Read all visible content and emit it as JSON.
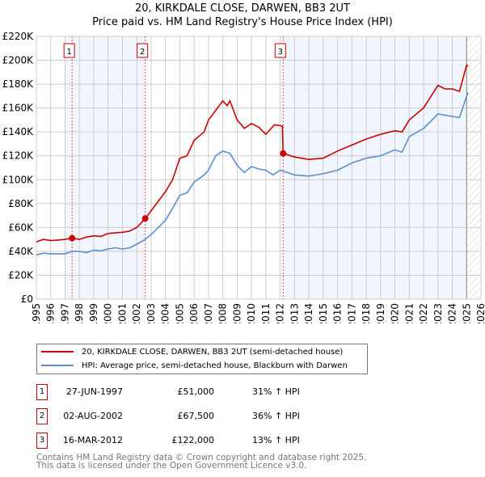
{
  "chart_data": {
    "type": "line",
    "title": "20, KIRKDALE CLOSE, DARWEN, BB3 2UT",
    "subtitle": "Price paid vs. HM Land Registry's House Price Index (HPI)",
    "xlim": [
      1995,
      2026
    ],
    "ylim": [
      0,
      220000
    ],
    "y_ticks": [
      0,
      20000,
      40000,
      60000,
      80000,
      100000,
      120000,
      140000,
      160000,
      180000,
      200000,
      220000
    ],
    "y_tick_labels": [
      "£0",
      "£20K",
      "£40K",
      "£60K",
      "£80K",
      "£100K",
      "£120K",
      "£140K",
      "£160K",
      "£180K",
      "£200K",
      "£220K"
    ],
    "x_ticks": [
      1995,
      1996,
      1997,
      1998,
      1999,
      2000,
      2001,
      2002,
      2003,
      2004,
      2005,
      2006,
      2007,
      2008,
      2009,
      2010,
      2011,
      2012,
      2013,
      2014,
      2015,
      2016,
      2017,
      2018,
      2019,
      2020,
      2021,
      2022,
      2023,
      2024,
      2025,
      2026
    ],
    "grid": true,
    "shaded_ranges": [
      [
        1997.0,
        2002.6
      ],
      [
        2012.2,
        2025.0
      ]
    ],
    "hatched_range": [
      2025.0,
      2026
    ],
    "series": [
      {
        "name": "20, KIRKDALE CLOSE, DARWEN, BB3 2UT (semi-detached house)",
        "color": "#cc0000",
        "x": [
          1995,
          1995.5,
          1996,
          1996.5,
          1997,
          1997.5,
          1998,
          1998.5,
          1999,
          1999.5,
          2000,
          2000.5,
          2001,
          2001.5,
          2002,
          2002.6,
          2003,
          2003.5,
          2004,
          2004.5,
          2005,
          2005.5,
          2006,
          2006.7,
          2007,
          2007.5,
          2008,
          2008.3,
          2008.5,
          2009,
          2009.5,
          2010,
          2010.5,
          2011,
          2011.6,
          2012.15,
          2012.2,
          2013,
          2014,
          2015,
          2016,
          2017,
          2018,
          2019,
          2020,
          2020.5,
          2021,
          2022,
          2023,
          2023.5,
          2024,
          2024.5,
          2025,
          2025.1
        ],
        "y": [
          48000,
          50000,
          49000,
          49500,
          50000,
          51000,
          50000,
          52000,
          53000,
          52500,
          55000,
          55500,
          56000,
          57000,
          60000,
          67500,
          74000,
          82000,
          90000,
          100000,
          118000,
          120000,
          133000,
          140000,
          150000,
          158000,
          166000,
          162000,
          166000,
          150000,
          143000,
          147000,
          144000,
          138000,
          146000,
          145000,
          122000,
          119000,
          117000,
          118000,
          124000,
          129000,
          134000,
          138000,
          141000,
          140000,
          150000,
          160000,
          179000,
          176000,
          176000,
          174000,
          196000,
          195000
        ]
      },
      {
        "name": "HPI: Average price, semi-detached house, Blackburn with Darwen",
        "color": "#5b8fd1",
        "x": [
          1995,
          1995.5,
          1996,
          1996.5,
          1997,
          1997.5,
          1998,
          1998.5,
          1999,
          1999.5,
          2000,
          2000.5,
          2001,
          2001.5,
          2002,
          2002.6,
          2003,
          2003.5,
          2004,
          2004.5,
          2005,
          2005.5,
          2006,
          2006.7,
          2007,
          2007.5,
          2008,
          2008.5,
          2009,
          2009.5,
          2010,
          2010.5,
          2011,
          2011.5,
          2012,
          2012.5,
          2013,
          2014,
          2015,
          2016,
          2017,
          2018,
          2019,
          2020,
          2020.5,
          2021,
          2022,
          2023,
          2023.5,
          2024,
          2024.5,
          2025,
          2025.1
        ],
        "y": [
          37000,
          38500,
          38000,
          38000,
          38000,
          40000,
          40000,
          39000,
          41000,
          40500,
          42000,
          43000,
          42000,
          43000,
          46000,
          50000,
          54000,
          60000,
          66000,
          76000,
          87000,
          89000,
          98000,
          104000,
          108000,
          120000,
          124000,
          122000,
          112000,
          106000,
          111000,
          109000,
          108000,
          104000,
          108000,
          106000,
          104000,
          103000,
          105000,
          108000,
          114000,
          118000,
          120000,
          125000,
          123000,
          136000,
          143000,
          155000,
          154000,
          153000,
          152000,
          170000,
          173000
        ]
      }
    ],
    "sales": [
      {
        "label": "1",
        "x": 1997.49,
        "y": 51000,
        "date": "27-JUN-1997",
        "price": "£51,000",
        "hpi": "31% ↑ HPI"
      },
      {
        "label": "2",
        "x": 2002.59,
        "y": 67500,
        "date": "02-AUG-2002",
        "price": "£67,500",
        "hpi": "36% ↑ HPI"
      },
      {
        "label": "3",
        "x": 2012.21,
        "y": 122000,
        "date": "16-MAR-2012",
        "price": "£122,000",
        "hpi": "13% ↑ HPI"
      }
    ]
  },
  "legend": {
    "property": "20, KIRKDALE CLOSE, DARWEN, BB3 2UT (semi-detached house)",
    "hpi": "HPI: Average price, semi-detached house, Blackburn with Darwen"
  },
  "footer": {
    "line1": "Contains HM Land Registry data © Crown copyright and database right 2025.",
    "line2": "This data is licensed under the Open Government Licence v3.0."
  }
}
